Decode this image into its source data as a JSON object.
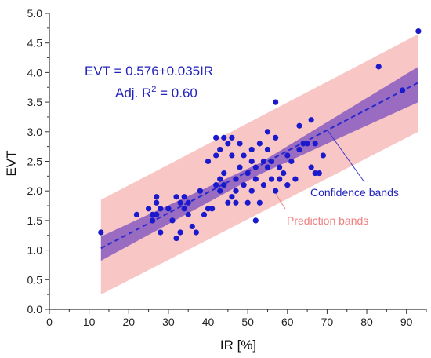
{
  "chart_data": {
    "type": "scatter",
    "xlabel": "IR [%]",
    "ylabel": "EVT",
    "xlim": [
      0,
      95
    ],
    "ylim": [
      0.0,
      5.0
    ],
    "x_ticks": [
      "0",
      "10",
      "20",
      "30",
      "40",
      "50",
      "60",
      "70",
      "80",
      "90"
    ],
    "y_ticks": [
      "0.0",
      "0.5",
      "1.0",
      "1.5",
      "2.0",
      "2.5",
      "3.0",
      "3.5",
      "4.0",
      "4.5",
      "5.0"
    ],
    "grid": false,
    "colors": {
      "points": "#1a1acc",
      "fit_line": "#2a2acc",
      "confidence_band": "#8a5cc0",
      "prediction_band": "#f7b3b3",
      "equation": "#2222bb",
      "prediction_label": "#f08080",
      "confidence_label": "#2222bb"
    },
    "annotations": {
      "equation": "EVT = 0.576+0.035IR",
      "r2_prefix": "Adj. R",
      "r2_sup": "2",
      "r2_suffix": " = 0.60",
      "confidence_label": "Confidence bands",
      "prediction_label": "Prediction bands"
    },
    "fit": {
      "intercept": 0.576,
      "slope": 0.035,
      "x_range": [
        13,
        93
      ]
    },
    "confidence_band": {
      "x": [
        13,
        53,
        93
      ],
      "lower": [
        0.82,
        2.28,
        3.5
      ],
      "upper": [
        1.23,
        2.47,
        4.1
      ]
    },
    "prediction_band": {
      "x": [
        13,
        93
      ],
      "lower": [
        0.25,
        3.0
      ],
      "upper": [
        1.85,
        4.65
      ]
    },
    "points": [
      {
        "x": 93,
        "y": 4.7
      },
      {
        "x": 83,
        "y": 4.1
      },
      {
        "x": 89,
        "y": 3.7
      },
      {
        "x": 57,
        "y": 3.5
      },
      {
        "x": 13,
        "y": 1.3
      },
      {
        "x": 52,
        "y": 1.5
      },
      {
        "x": 22,
        "y": 1.6
      },
      {
        "x": 25,
        "y": 1.7
      },
      {
        "x": 26,
        "y": 1.6
      },
      {
        "x": 26,
        "y": 1.5
      },
      {
        "x": 27,
        "y": 1.9
      },
      {
        "x": 27,
        "y": 1.8
      },
      {
        "x": 27,
        "y": 1.6
      },
      {
        "x": 28,
        "y": 1.7
      },
      {
        "x": 28,
        "y": 1.3
      },
      {
        "x": 30,
        "y": 1.7
      },
      {
        "x": 31,
        "y": 1.5
      },
      {
        "x": 32,
        "y": 1.2
      },
      {
        "x": 32,
        "y": 1.9
      },
      {
        "x": 33,
        "y": 1.3
      },
      {
        "x": 33,
        "y": 1.8
      },
      {
        "x": 34,
        "y": 1.9
      },
      {
        "x": 34,
        "y": 1.7
      },
      {
        "x": 35,
        "y": 1.6
      },
      {
        "x": 35,
        "y": 1.8
      },
      {
        "x": 36,
        "y": 1.4
      },
      {
        "x": 37,
        "y": 1.3
      },
      {
        "x": 38,
        "y": 2.0
      },
      {
        "x": 39,
        "y": 1.6
      },
      {
        "x": 40,
        "y": 1.7
      },
      {
        "x": 40,
        "y": 2.5
      },
      {
        "x": 41,
        "y": 1.7
      },
      {
        "x": 42,
        "y": 2.1
      },
      {
        "x": 42,
        "y": 2.6
      },
      {
        "x": 42,
        "y": 2.9
      },
      {
        "x": 43,
        "y": 2.0
      },
      {
        "x": 43,
        "y": 2.2
      },
      {
        "x": 43,
        "y": 2.7
      },
      {
        "x": 44,
        "y": 2.3
      },
      {
        "x": 44,
        "y": 2.9
      },
      {
        "x": 44,
        "y": 2.1
      },
      {
        "x": 45,
        "y": 1.8
      },
      {
        "x": 45,
        "y": 2.8
      },
      {
        "x": 46,
        "y": 1.9
      },
      {
        "x": 46,
        "y": 2.6
      },
      {
        "x": 46,
        "y": 2.9
      },
      {
        "x": 47,
        "y": 2.0
      },
      {
        "x": 47,
        "y": 2.2
      },
      {
        "x": 47,
        "y": 1.8
      },
      {
        "x": 48,
        "y": 2.4
      },
      {
        "x": 48,
        "y": 2.8
      },
      {
        "x": 49,
        "y": 2.1
      },
      {
        "x": 49,
        "y": 2.6
      },
      {
        "x": 50,
        "y": 2.3
      },
      {
        "x": 50,
        "y": 1.8
      },
      {
        "x": 51,
        "y": 2.5
      },
      {
        "x": 51,
        "y": 2.0
      },
      {
        "x": 51,
        "y": 2.7
      },
      {
        "x": 52,
        "y": 2.2
      },
      {
        "x": 52,
        "y": 2.4
      },
      {
        "x": 53,
        "y": 1.8
      },
      {
        "x": 53,
        "y": 2.8
      },
      {
        "x": 54,
        "y": 2.1
      },
      {
        "x": 54,
        "y": 2.5
      },
      {
        "x": 55,
        "y": 3.0
      },
      {
        "x": 55,
        "y": 2.4
      },
      {
        "x": 55,
        "y": 2.7
      },
      {
        "x": 56,
        "y": 2.2
      },
      {
        "x": 56,
        "y": 2.5
      },
      {
        "x": 57,
        "y": 2.9
      },
      {
        "x": 57,
        "y": 2.0
      },
      {
        "x": 58,
        "y": 2.4
      },
      {
        "x": 58,
        "y": 2.2
      },
      {
        "x": 59,
        "y": 2.3
      },
      {
        "x": 60,
        "y": 2.6
      },
      {
        "x": 60,
        "y": 2.1
      },
      {
        "x": 61,
        "y": 2.5
      },
      {
        "x": 62,
        "y": 2.2
      },
      {
        "x": 63,
        "y": 2.7
      },
      {
        "x": 63,
        "y": 3.1
      },
      {
        "x": 64,
        "y": 2.8
      },
      {
        "x": 65,
        "y": 2.8
      },
      {
        "x": 66,
        "y": 3.2
      },
      {
        "x": 66,
        "y": 2.4
      },
      {
        "x": 67,
        "y": 2.8
      },
      {
        "x": 67,
        "y": 2.3
      },
      {
        "x": 68,
        "y": 2.3
      },
      {
        "x": 69,
        "y": 2.6
      }
    ]
  }
}
